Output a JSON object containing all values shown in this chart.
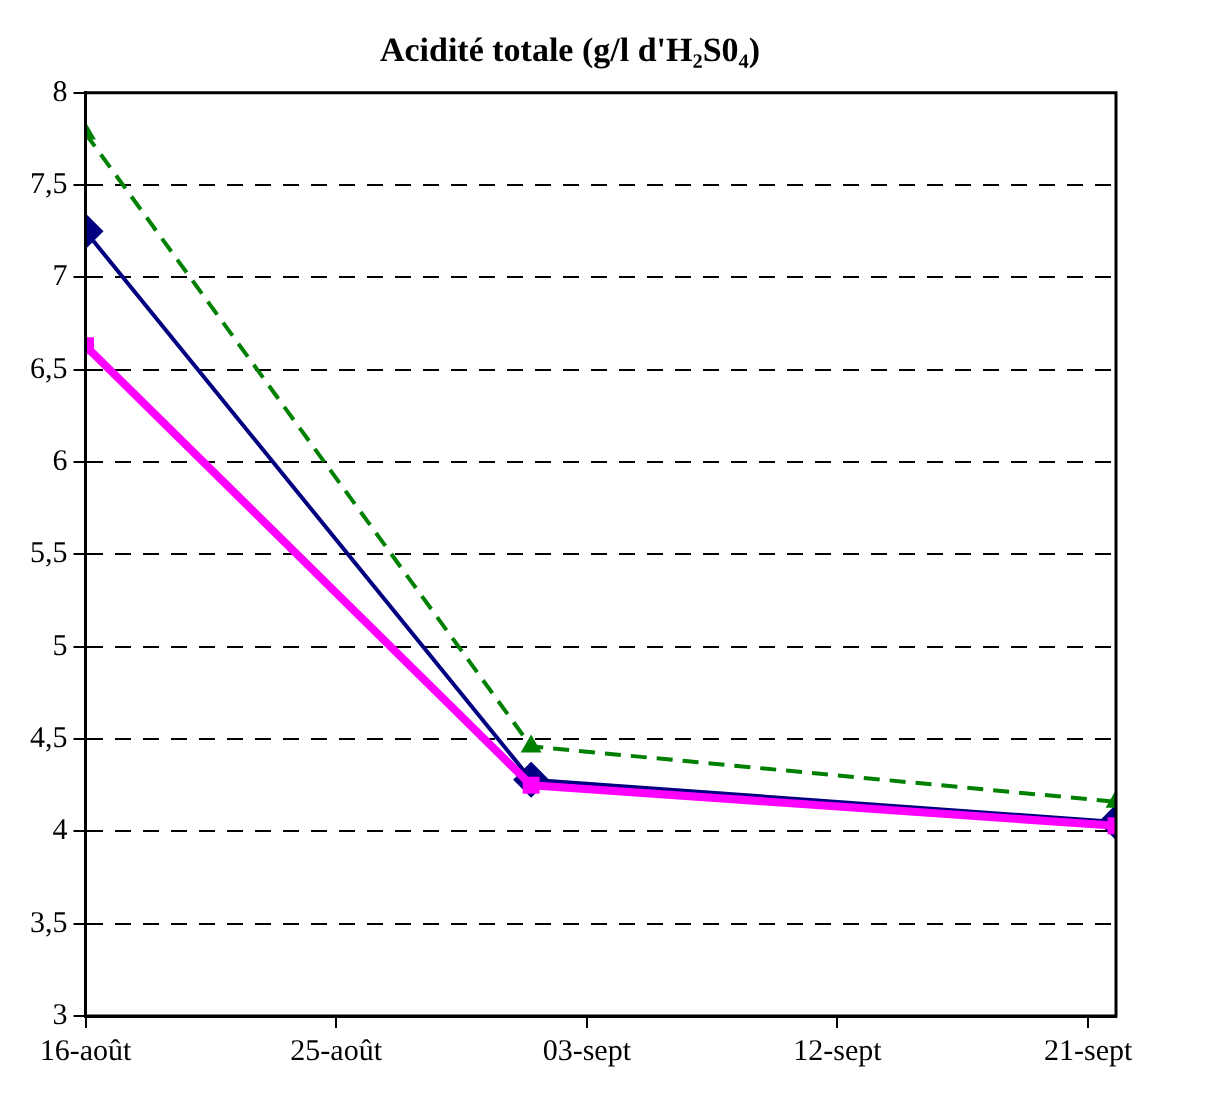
{
  "chart_data": {
    "type": "line",
    "title": "Acidité totale (g/l d'H₂S0₄)",
    "x": [
      "--08-16",
      "--09-01",
      "--09-22"
    ],
    "series": [
      {
        "color": "#000080",
        "values": [
          7.25,
          4.28,
          4.05
        ],
        "marker": "diamond",
        "line_style": "solid"
      },
      {
        "color": "#008000",
        "values": [
          7.78,
          4.46,
          4.16
        ],
        "marker": "triangle",
        "line_style": "dashed"
      },
      {
        "color": "#ff00ff",
        "values": [
          6.63,
          4.25,
          4.03
        ],
        "marker": "square",
        "line_style": "solid"
      }
    ],
    "xlim": [
      "--08-16",
      "--09-22"
    ],
    "xticks": [
      {
        "value": "--08-16",
        "label": "16-août"
      },
      {
        "value": "--08-25",
        "label": "25-août"
      },
      {
        "value": "--09-03",
        "label": "03-sept"
      },
      {
        "value": "--09-12",
        "label": "12-sept"
      },
      {
        "value": "--09-21",
        "label": "21-sept"
      }
    ],
    "ylim": [
      3,
      8
    ],
    "yticks": [
      {
        "value": 3,
        "label": "3"
      },
      {
        "value": 3.5,
        "label": "3,5"
      },
      {
        "value": 4,
        "label": "4"
      },
      {
        "value": 4.5,
        "label": "4,5"
      },
      {
        "value": 5,
        "label": "5"
      },
      {
        "value": 5.5,
        "label": "5,5"
      },
      {
        "value": 6,
        "label": "6"
      },
      {
        "value": 6.5,
        "label": "6,5"
      },
      {
        "value": 7,
        "label": "7"
      },
      {
        "value": 7.5,
        "label": "7,5"
      },
      {
        "value": 8,
        "label": "8"
      }
    ],
    "grid": "y",
    "legend": false
  }
}
